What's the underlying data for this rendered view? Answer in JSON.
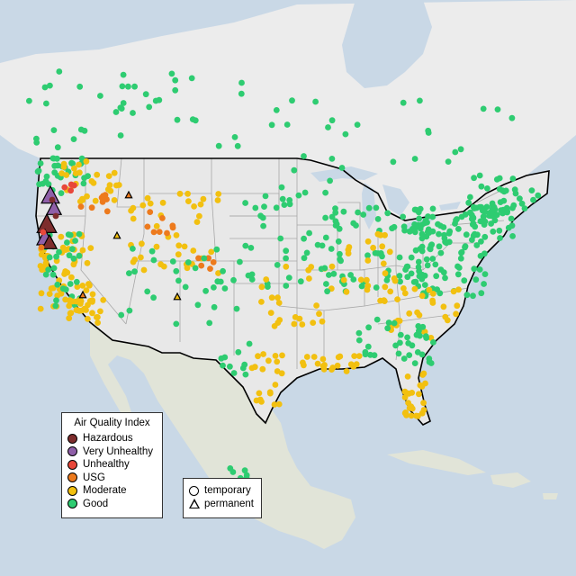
{
  "legend": {
    "title": "Air Quality Index",
    "categories": [
      {
        "label": "Hazardous",
        "color": "#7e2d2d"
      },
      {
        "label": "Very Unhealthy",
        "color": "#8f5fa8"
      },
      {
        "label": "Unhealthy",
        "color": "#e8473a"
      },
      {
        "label": "USG",
        "color": "#ed7a1d"
      },
      {
        "label": "Moderate",
        "color": "#f2c010"
      },
      {
        "label": "Good",
        "color": "#2ecc71"
      }
    ]
  },
  "monitor_types": {
    "temporary": "temporary",
    "permanent": "permanent"
  },
  "colors": {
    "ocean": "#c9d8e6",
    "land": "#e9e9e9",
    "land_south": "#dfe2d5",
    "border": "#000000",
    "state_lines": "#a8a8a8"
  }
}
